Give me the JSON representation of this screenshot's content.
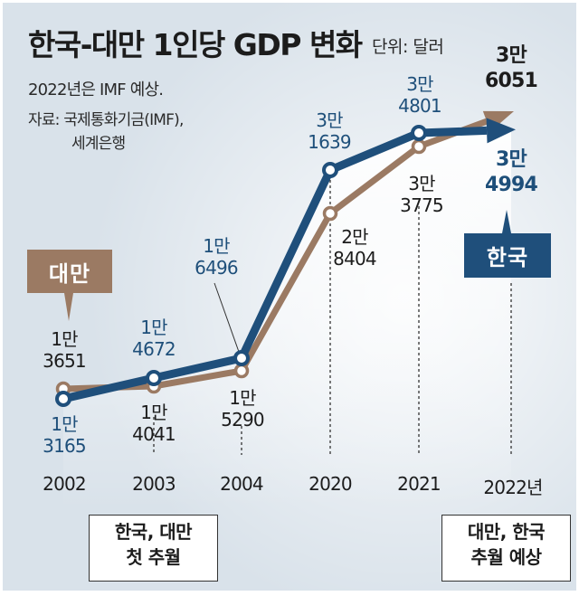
{
  "header": {
    "title": "한국-대만 1인당 GDP 변화",
    "unit": "단위: 달러",
    "note": "2022년은 IMF 예상.",
    "source_line1": "자료: 국제통화기금(IMF),",
    "source_line2": "세계은행"
  },
  "legend": {
    "taiwan": "대만",
    "korea": "한국"
  },
  "colors": {
    "korea": "#1f4f7b",
    "taiwan": "#9b7a63",
    "background": "#d9e2ea"
  },
  "callouts": {
    "first": {
      "line1": "한국, 대만",
      "line2": "첫 추월"
    },
    "forecast": {
      "line1": "대만, 한국",
      "line2": "추월 예상"
    }
  },
  "chart_data": {
    "type": "line",
    "title": "한국-대만 1인당 GDP 변화",
    "ylabel": "단위: 달러",
    "xlabel": "",
    "categories": [
      "2002",
      "2003",
      "2004",
      "2020",
      "2021",
      "2022년"
    ],
    "series": [
      {
        "name": "한국",
        "values": [
          13165,
          14672,
          16496,
          31639,
          34801,
          34994
        ],
        "labels": [
          [
            "1만",
            "3165"
          ],
          [
            "1만",
            "4672"
          ],
          [
            "1만",
            "6496"
          ],
          [
            "3만",
            "1639"
          ],
          [
            "3만",
            "4801"
          ],
          [
            "3만",
            "4994"
          ]
        ]
      },
      {
        "name": "대만",
        "values": [
          13651,
          14041,
          15290,
          28404,
          33775,
          36051
        ],
        "labels": [
          [
            "1만",
            "3651"
          ],
          [
            "1만",
            "4041"
          ],
          [
            "1만",
            "5290"
          ],
          [
            "2만",
            "8404"
          ],
          [
            "3만",
            "3775"
          ],
          [
            "3만",
            "6051"
          ]
        ]
      }
    ],
    "forecast_categories": [
      "2022년"
    ],
    "axis_note": "x axis is non-linear (2004 → 2020 break)",
    "grid": "dashed vertical drop lines at 2003, 2004, 2020, 2021, 2022",
    "legend": "direct labels"
  }
}
